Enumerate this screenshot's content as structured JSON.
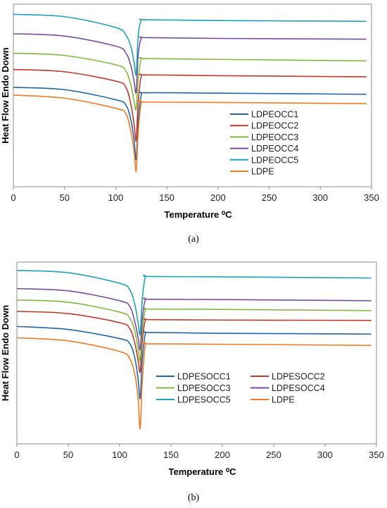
{
  "colors": {
    "LDPEOCC1": "#2166ac",
    "LDPEOCC2": "#c0392b",
    "LDPEOCC3": "#7fba3a",
    "LDPEOCC4": "#7a4c9e",
    "LDPEOCC5": "#1fa3b8",
    "LDPE": "#f37a20"
  },
  "chart_data": [
    {
      "type": "line",
      "panel_label": "(a)",
      "xlabel": "Temperature",
      "xlabel_unit": "⁰C",
      "ylabel": "Heat Flow Endo Down",
      "xlim": [
        0,
        345
      ],
      "x_ticks": [
        "0",
        "50",
        "100",
        "150",
        "200",
        "250",
        "300",
        "350"
      ],
      "y_ticks_shown": false,
      "grid": false,
      "legend_position": "right",
      "legend_columns": 1,
      "series": [
        {
          "name": "LDPEOCC1",
          "color": "#2166ac",
          "values": [
            [
              0,
              128
            ],
            [
              50,
              125
            ],
            [
              100,
              112
            ],
            [
              110,
              105
            ],
            [
              115,
              85
            ],
            [
              118,
              60
            ],
            [
              120,
              35
            ],
            [
              122,
              85
            ],
            [
              125,
              118
            ],
            [
              130,
              121
            ],
            [
              200,
              120.5
            ],
            [
              345,
              119
            ]
          ]
        },
        {
          "name": "LDPEOCC2",
          "color": "#c0392b",
          "values": [
            [
              0,
              151
            ],
            [
              50,
              148
            ],
            [
              100,
              136
            ],
            [
              110,
              128
            ],
            [
              115,
              105
            ],
            [
              118,
              80
            ],
            [
              120,
              60
            ],
            [
              122,
              110
            ],
            [
              125,
              142
            ],
            [
              130,
              144
            ],
            [
              200,
              143
            ],
            [
              345,
              141.5
            ]
          ]
        },
        {
          "name": "LDPEOCC3",
          "color": "#7fba3a",
          "values": [
            [
              0,
              172
            ],
            [
              50,
              169
            ],
            [
              100,
              157
            ],
            [
              110,
              149
            ],
            [
              115,
              130
            ],
            [
              118,
              110
            ],
            [
              120,
              100
            ],
            [
              122,
              140
            ],
            [
              125,
              164
            ],
            [
              130,
              165
            ],
            [
              200,
              164
            ],
            [
              345,
              162
            ]
          ]
        },
        {
          "name": "LDPEOCC4",
          "color": "#7a4c9e",
          "values": [
            [
              0,
              197
            ],
            [
              50,
              194
            ],
            [
              100,
              181
            ],
            [
              110,
              172
            ],
            [
              115,
              155
            ],
            [
              118,
              135
            ],
            [
              120,
              122
            ],
            [
              122,
              170
            ],
            [
              125,
              191
            ],
            [
              130,
              192
            ],
            [
              200,
              191
            ],
            [
              345,
              190
            ]
          ]
        },
        {
          "name": "LDPEOCC5",
          "color": "#1fa3b8",
          "values": [
            [
              0,
              222
            ],
            [
              50,
              219
            ],
            [
              100,
              205
            ],
            [
              110,
              195
            ],
            [
              115,
              180
            ],
            [
              118,
              160
            ],
            [
              120,
              145
            ],
            [
              122,
              195
            ],
            [
              125,
              214
            ],
            [
              130,
              215
            ],
            [
              200,
              214
            ],
            [
              345,
              213
            ]
          ]
        },
        {
          "name": "LDPE",
          "color": "#f37a20",
          "values": [
            [
              0,
              118
            ],
            [
              50,
              114
            ],
            [
              100,
              101
            ],
            [
              110,
              94
            ],
            [
              115,
              70
            ],
            [
              118,
              45
            ],
            [
              120,
              20
            ],
            [
              122,
              70
            ],
            [
              125,
              108
            ],
            [
              130,
              109
            ],
            [
              200,
              108.5
            ],
            [
              345,
              107
            ]
          ]
        }
      ]
    },
    {
      "type": "line",
      "panel_label": "(b)",
      "xlabel": "Temperature",
      "xlabel_unit": "⁰C",
      "ylabel": "Heat Flow Endo Down",
      "xlim": [
        0,
        345
      ],
      "x_ticks": [
        "0",
        "50",
        "100",
        "150",
        "200",
        "250",
        "300",
        "350"
      ],
      "y_ticks_shown": false,
      "grid": false,
      "legend_position": "lower-right",
      "legend_columns": 2,
      "series": [
        {
          "name": "LDPESOCC1",
          "color": "#2166ac",
          "values": [
            [
              0,
              155
            ],
            [
              50,
              151
            ],
            [
              100,
              139
            ],
            [
              110,
              132
            ],
            [
              115,
              112
            ],
            [
              118,
              85
            ],
            [
              120,
              60
            ],
            [
              122,
              110
            ],
            [
              125,
              145
            ],
            [
              130,
              147
            ],
            [
              200,
              146
            ],
            [
              345,
              145
            ]
          ]
        },
        {
          "name": "LDPESOCC2",
          "color": "#c0392b",
          "values": [
            [
              0,
              175
            ],
            [
              50,
              172
            ],
            [
              100,
              160
            ],
            [
              110,
              152
            ],
            [
              115,
              132
            ],
            [
              118,
              110
            ],
            [
              120,
              95
            ],
            [
              122,
              135
            ],
            [
              125,
              163
            ],
            [
              130,
              164
            ],
            [
              200,
              163.5
            ],
            [
              345,
              163
            ]
          ]
        },
        {
          "name": "LDPESOCC3",
          "color": "#7fba3a",
          "values": [
            [
              0,
              190
            ],
            [
              50,
              187
            ],
            [
              100,
              174
            ],
            [
              110,
              166
            ],
            [
              115,
              148
            ],
            [
              118,
              125
            ],
            [
              120,
              110
            ],
            [
              122,
              150
            ],
            [
              125,
              177
            ],
            [
              130,
              178
            ],
            [
              200,
              177.5
            ],
            [
              345,
              176
            ]
          ]
        },
        {
          "name": "LDPESOCC4",
          "color": "#7a4c9e",
          "values": [
            [
              0,
              205
            ],
            [
              50,
              202
            ],
            [
              100,
              189
            ],
            [
              110,
              181
            ],
            [
              115,
              160
            ],
            [
              118,
              140
            ],
            [
              120,
              125
            ],
            [
              122,
              165
            ],
            [
              125,
              190
            ],
            [
              130,
              191
            ],
            [
              200,
              190.5
            ],
            [
              345,
              189
            ]
          ]
        },
        {
          "name": "LDPESOCC5",
          "color": "#1fa3b8",
          "values": [
            [
              0,
              229
            ],
            [
              50,
              226
            ],
            [
              100,
              212
            ],
            [
              110,
              203
            ],
            [
              115,
              183
            ],
            [
              118,
              160
            ],
            [
              120,
              145
            ],
            [
              122,
              190
            ],
            [
              125,
              220
            ],
            [
              130,
              221
            ],
            [
              200,
              220.5
            ],
            [
              345,
              219
            ]
          ]
        },
        {
          "name": "LDPE",
          "color": "#f37a20",
          "values": [
            [
              0,
              140
            ],
            [
              50,
              136
            ],
            [
              100,
              122
            ],
            [
              110,
              112
            ],
            [
              115,
              90
            ],
            [
              118,
              60
            ],
            [
              120,
              20
            ],
            [
              122,
              80
            ],
            [
              125,
              130
            ],
            [
              130,
              132
            ],
            [
              200,
              131.5
            ],
            [
              345,
              130
            ]
          ]
        }
      ]
    }
  ]
}
